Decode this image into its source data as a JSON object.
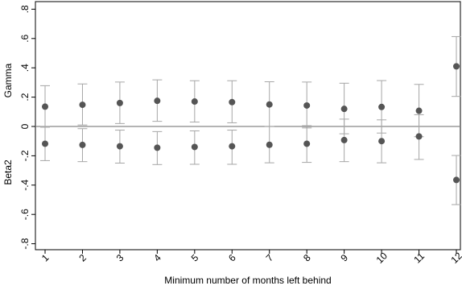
{
  "chart_data": {
    "type": "scatter",
    "xlabel": "Minimum number of months left behind",
    "ylabel_top": "Gamma",
    "ylabel_bottom": "Beta2",
    "x": [
      1,
      2,
      3,
      4,
      5,
      6,
      7,
      8,
      9,
      10,
      11,
      12
    ],
    "x_ticks": [
      "1",
      "2",
      "3",
      "4",
      "5",
      "6",
      "7",
      "8",
      "9",
      "10",
      "11",
      "12"
    ],
    "ylim": [
      -0.85,
      0.85
    ],
    "y_ticks": [
      {
        "value": 0.8,
        "label": ".8"
      },
      {
        "value": 0.6,
        "label": ".6"
      },
      {
        "value": 0.4,
        "label": ".4"
      },
      {
        "value": 0.2,
        "label": ".2"
      },
      {
        "value": 0,
        "label": "0"
      },
      {
        "value": -0.2,
        "label": "-.2"
      },
      {
        "value": -0.4,
        "label": "-.4"
      },
      {
        "value": -0.6,
        "label": "-.6"
      },
      {
        "value": -0.8,
        "label": "-.8"
      }
    ],
    "reference_line_y": 0,
    "grid": false,
    "marker_color": "#555555",
    "errorbar_color": "#a6a6a6",
    "series": [
      {
        "estimate": [
          0.135,
          0.148,
          0.16,
          0.175,
          0.17,
          0.166,
          0.15,
          0.143,
          0.12,
          0.133,
          0.107,
          0.41
        ],
        "upper": [
          0.278,
          0.29,
          0.303,
          0.318,
          0.312,
          0.312,
          0.305,
          0.303,
          0.295,
          0.313,
          0.287,
          0.613
        ],
        "lower": [
          -0.005,
          0.01,
          0.02,
          0.035,
          0.03,
          0.025,
          0.0,
          -0.01,
          -0.05,
          -0.045,
          -0.07,
          0.205
        ]
      },
      {
        "estimate": [
          -0.118,
          -0.126,
          -0.135,
          -0.145,
          -0.14,
          -0.135,
          -0.125,
          -0.118,
          -0.093,
          -0.1,
          -0.068,
          -0.365
        ],
        "upper": [
          0.0,
          -0.015,
          -0.025,
          -0.035,
          -0.03,
          -0.025,
          0.0,
          0.005,
          0.05,
          0.045,
          0.08,
          -0.198
        ],
        "lower": [
          -0.233,
          -0.24,
          -0.25,
          -0.26,
          -0.258,
          -0.258,
          -0.248,
          -0.245,
          -0.24,
          -0.248,
          -0.225,
          -0.533
        ]
      }
    ]
  }
}
